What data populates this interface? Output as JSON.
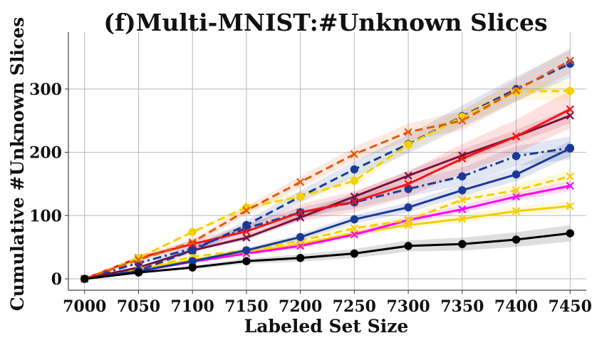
{
  "chart_data": {
    "type": "line",
    "title": "(f)Multi-MNIST:#Unknown Slices",
    "xlabel": "Labeled Set Size",
    "ylabel": "Cumulative #Unknown Slices",
    "x": [
      7000,
      7050,
      7100,
      7150,
      7200,
      7250,
      7300,
      7350,
      7400,
      7450
    ],
    "xticks": [
      "7000",
      "7050",
      "7100",
      "7150",
      "7200",
      "7250",
      "7300",
      "7350",
      "7400",
      "7450"
    ],
    "yticks": [
      "0",
      "100",
      "200",
      "300"
    ],
    "xlim": [
      6985,
      7465
    ],
    "ylim": [
      -18,
      390
    ],
    "grid": true,
    "legend": "none",
    "series": [
      {
        "color": "#f5d000",
        "dash": "solid",
        "marker": "x",
        "values": [
          0,
          15,
          30,
          42,
          55,
          72,
          85,
          95,
          107,
          115
        ],
        "band": 8
      },
      {
        "color": "#ff00ff",
        "dash": "solid",
        "marker": "x",
        "values": [
          0,
          12,
          27,
          40,
          52,
          70,
          93,
          110,
          130,
          147
        ],
        "band": 8
      },
      {
        "color": "#f5d000",
        "dash": "dashed",
        "marker": "x",
        "values": [
          0,
          15,
          35,
          45,
          60,
          80,
          93,
          125,
          140,
          162
        ],
        "band": 10
      },
      {
        "color": "#1a3a99",
        "dash": "solid",
        "marker": "o",
        "values": [
          0,
          12,
          28,
          45,
          66,
          94,
          113,
          140,
          165,
          206
        ],
        "band": 12
      },
      {
        "color": "#1a3a99",
        "dash": "dashdot",
        "marker": "o",
        "values": [
          0,
          25,
          48,
          80,
          105,
          121,
          142,
          162,
          194,
          207
        ],
        "band": 18
      },
      {
        "color": "#7a1040",
        "dash": "solid",
        "marker": "x",
        "values": [
          0,
          18,
          45,
          65,
          97,
          130,
          163,
          195,
          225,
          258
        ],
        "band": 12
      },
      {
        "color": "#ff1010",
        "dash": "solid",
        "marker": "x",
        "values": [
          0,
          33,
          55,
          75,
          105,
          122,
          150,
          190,
          225,
          268
        ],
        "band": 30
      },
      {
        "color": "#1a3a99",
        "dash": "dashed",
        "marker": "o",
        "values": [
          0,
          13,
          45,
          85,
          130,
          173,
          213,
          257,
          300,
          340
        ],
        "band": 22
      },
      {
        "color": "#f5d000",
        "dash": "dashed",
        "marker": "o",
        "values": [
          0,
          33,
          74,
          113,
          130,
          155,
          212,
          256,
          296,
          297
        ],
        "band": 15
      },
      {
        "color": "#e8560c",
        "dash": "dashed",
        "marker": "x",
        "values": [
          0,
          30,
          58,
          108,
          153,
          197,
          232,
          250,
          298,
          345
        ],
        "band": 20
      },
      {
        "color": "#000000",
        "dash": "solid",
        "marker": "o",
        "values": [
          0,
          10,
          18,
          28,
          33,
          40,
          52,
          55,
          62,
          72
        ],
        "band": 13
      }
    ]
  }
}
